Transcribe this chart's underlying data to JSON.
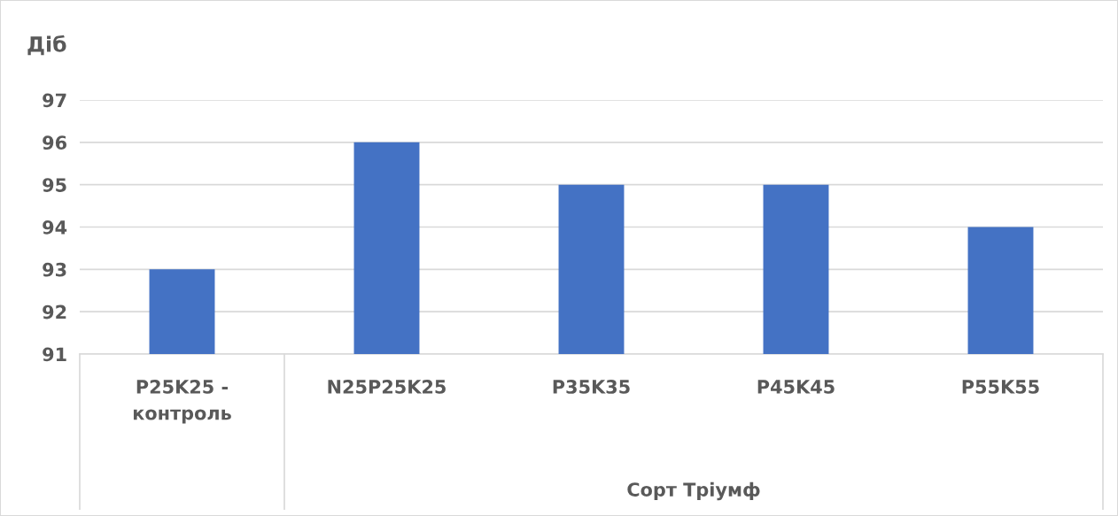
{
  "chart_data": {
    "type": "bar",
    "ylabel": "Діб",
    "xlabel": "Сорт Тріумф",
    "categories": [
      "P25K25 -\nконтроль",
      "N25P25K25",
      "P35K35",
      "P45K45",
      "P55K55"
    ],
    "values": [
      93,
      96,
      95,
      95,
      94
    ],
    "color": "#4472c4",
    "ylim": [
      91,
      97
    ],
    "yticks": [
      91,
      92,
      93,
      94,
      95,
      96,
      97
    ],
    "grid": "y"
  }
}
